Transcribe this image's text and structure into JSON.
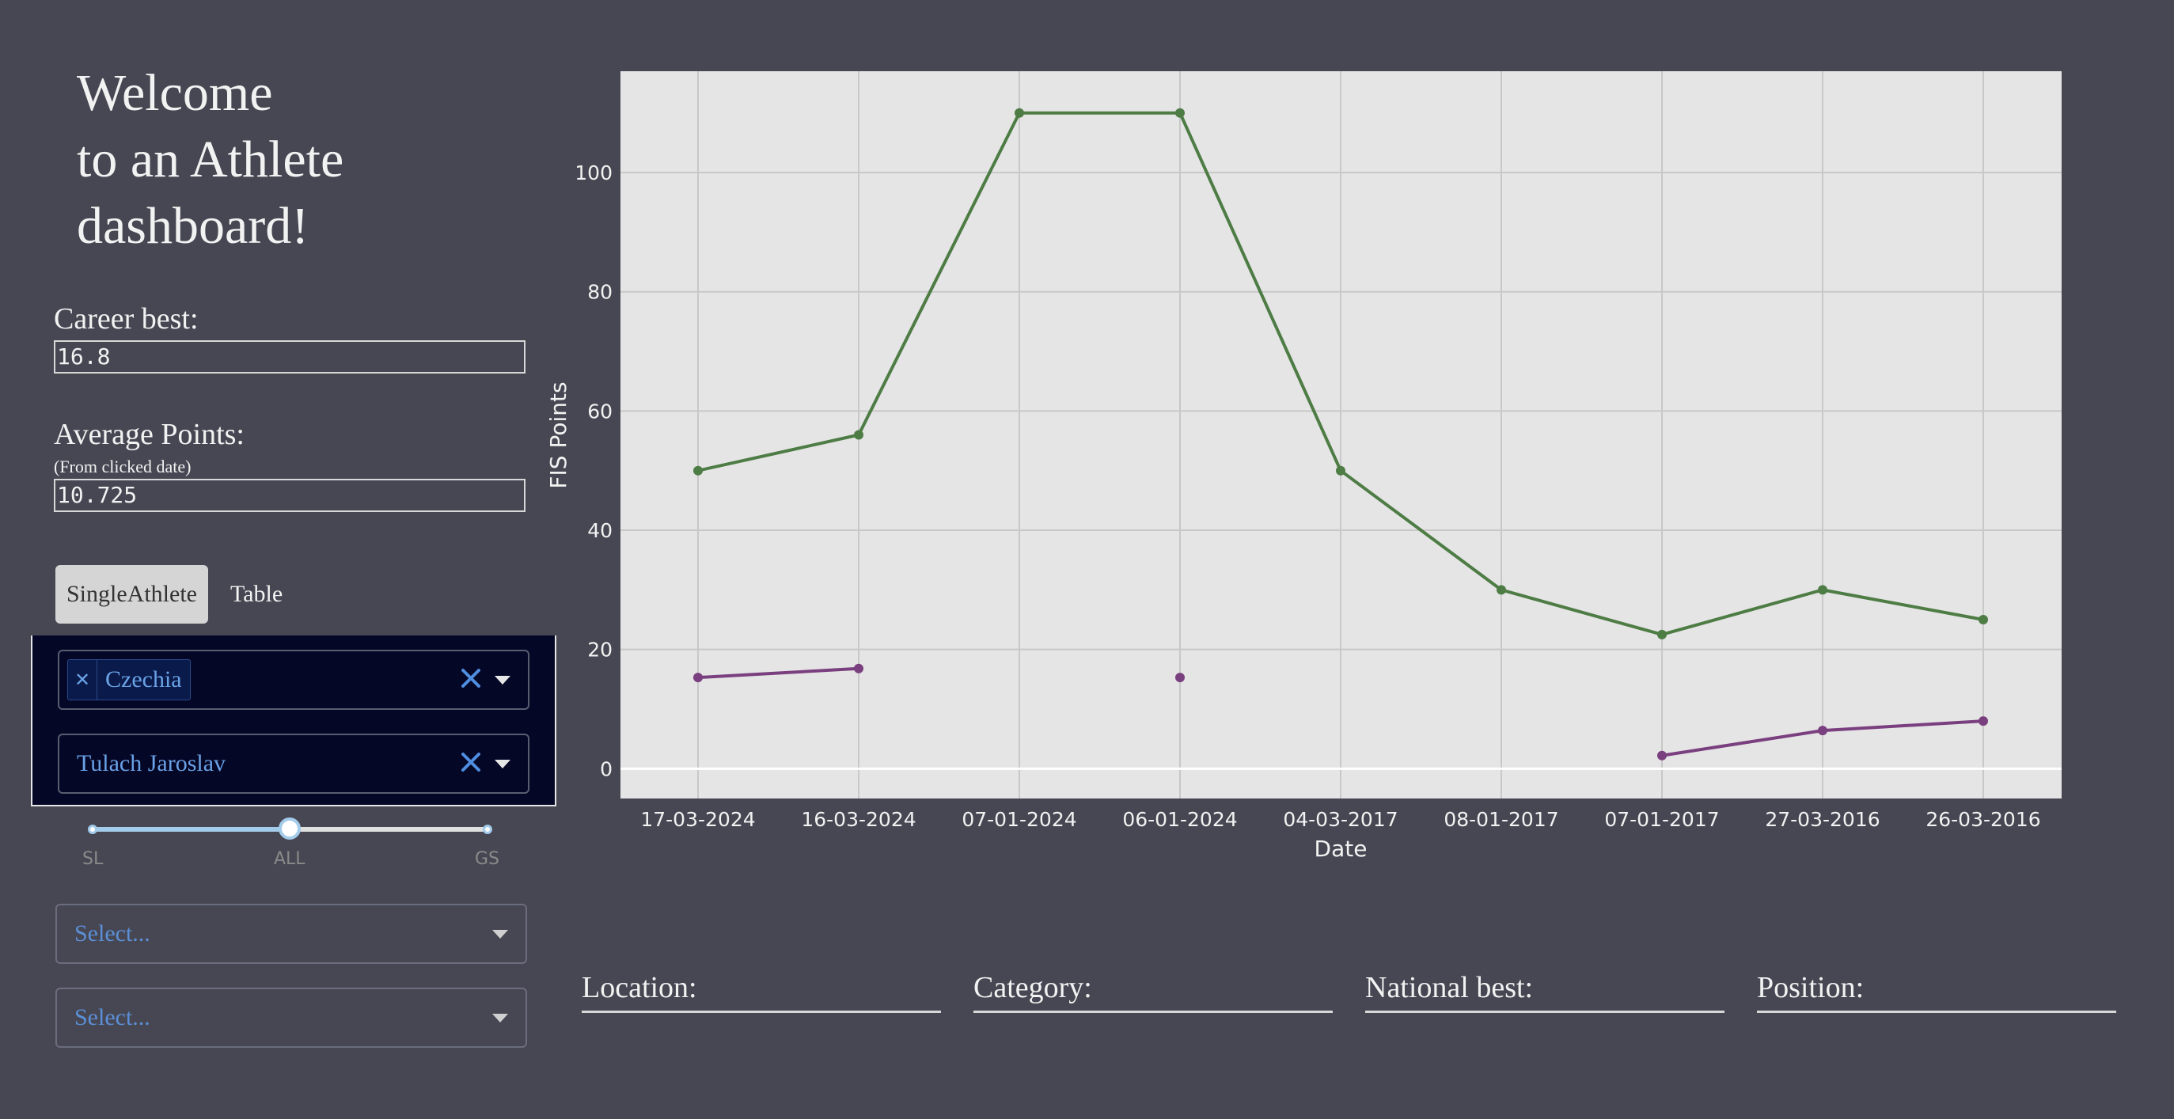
{
  "welcome": {
    "line1": "Welcome",
    "line2": "to an Athlete",
    "line3": "dashboard!"
  },
  "career_best": {
    "label": "Career best:",
    "value": "16.8"
  },
  "average_points": {
    "label": "Average Points:",
    "sublabel": "(From clicked date)",
    "value": "10.725"
  },
  "tabs": [
    {
      "label": "SingleAthlete",
      "active": true
    },
    {
      "label": "Table",
      "active": false
    }
  ],
  "filters": {
    "country": {
      "chip": "Czechia",
      "chip_remove_icon": "close-icon",
      "clear_icon": "close-icon"
    },
    "athlete": {
      "value": "Tulach Jaroslav",
      "clear_icon": "close-icon"
    }
  },
  "discipline_slider": {
    "marks": [
      "SL",
      "ALL",
      "GS"
    ],
    "selected": "ALL"
  },
  "select_1": {
    "placeholder": "Select..."
  },
  "select_2": {
    "placeholder": "Select..."
  },
  "info": {
    "location": "Location:",
    "category": "Category:",
    "national_best": "National best:",
    "position": "Position:"
  },
  "chart_data": {
    "type": "line",
    "xlabel": "Date",
    "ylabel": "FIS Points",
    "categories": [
      "17-03-2024",
      "16-03-2024",
      "07-01-2024",
      "06-01-2024",
      "04-03-2017",
      "08-01-2017",
      "07-01-2017",
      "27-03-2016",
      "26-03-2016"
    ],
    "yticks": [
      0,
      20,
      40,
      60,
      80,
      100
    ],
    "ylim": [
      -5,
      117
    ],
    "grid": true,
    "series": [
      {
        "color": "#4e7c45",
        "values": [
          50,
          56,
          110,
          110,
          50,
          30,
          22.5,
          30,
          25
        ]
      },
      {
        "color": "#7a3f7f",
        "values": [
          15.3,
          16.8,
          null,
          15.3,
          null,
          null,
          2.2,
          6.4,
          8
        ]
      }
    ]
  }
}
